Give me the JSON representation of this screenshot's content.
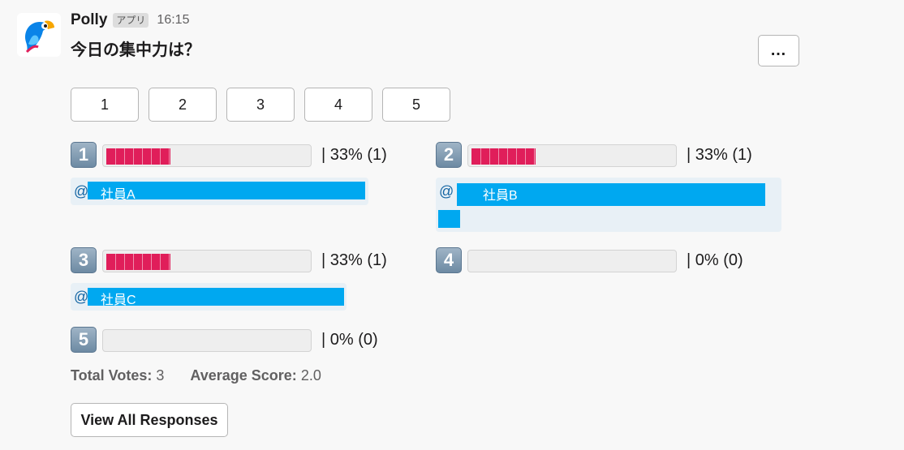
{
  "message": {
    "sender_name": "Polly",
    "app_badge": "アプリ",
    "timestamp": "16:15",
    "question": "今日の集中力は？",
    "more_actions_label": "…"
  },
  "vote_buttons": [
    "1",
    "2",
    "3",
    "4",
    "5"
  ],
  "options": [
    {
      "key": "1",
      "percent_text": "|  33% (1)",
      "percent": 33,
      "votes": 1,
      "voters": [
        "@",
        "社員A"
      ]
    },
    {
      "key": "2",
      "percent_text": "|  33% (1)",
      "percent": 33,
      "votes": 1,
      "voters": [
        "@",
        "社員B"
      ]
    },
    {
      "key": "3",
      "percent_text": "|  33% (1)",
      "percent": 33,
      "votes": 1,
      "voters": [
        "@",
        "社員C"
      ]
    },
    {
      "key": "4",
      "percent_text": "|  0% (0)",
      "percent": 0,
      "votes": 0,
      "voters": []
    },
    {
      "key": "5",
      "percent_text": "|  0% (0)",
      "percent": 0,
      "votes": 0,
      "voters": []
    }
  ],
  "summary": {
    "total_votes_label": "Total Votes:",
    "total_votes_value": "3",
    "average_label": "Average Score:",
    "average_value": "2.0"
  },
  "view_all_label": "View All Responses",
  "colors": {
    "bar_fill": "#e01e5a",
    "redaction": "#00a8f0",
    "mention": "#1264a3"
  },
  "icons": {
    "avatar": "polly-parrot-logo",
    "more": "ellipsis-icon",
    "option_keys": "keycap-digit-icon"
  }
}
